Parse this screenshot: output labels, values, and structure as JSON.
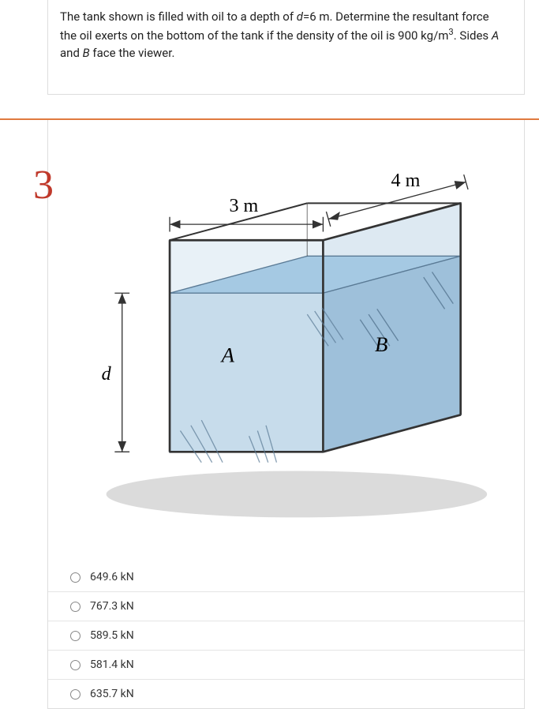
{
  "question": {
    "text_html": "The tank shown is filled with oil to a depth of <i>d</i>=6 m. Determine the resultant force the oil exerts on the bottom of the tank if the density of the oil is 900 kg/m<sup>3</sup>. Sides <i>A</i> and <i>B</i> face the viewer."
  },
  "question_number": "3",
  "figure": {
    "label_3m": "3 m",
    "label_4m": "4 m",
    "label_A": "A",
    "label_B": "B",
    "label_d": "d",
    "colors": {
      "tank_edge": "#333333",
      "water_top": "#a5c9e3",
      "water_front": "#c7dceb",
      "water_side": "#9ec0da",
      "glass_light": "#dce9f2",
      "shadow": "#b0b0b0"
    }
  },
  "options": [
    {
      "label": "649.6 kN",
      "selected": false
    },
    {
      "label": "767.3 kN",
      "selected": false
    },
    {
      "label": "589.5 kN",
      "selected": false
    },
    {
      "label": "581.4 kN",
      "selected": false
    },
    {
      "label": "635.7 kN",
      "selected": false
    }
  ]
}
